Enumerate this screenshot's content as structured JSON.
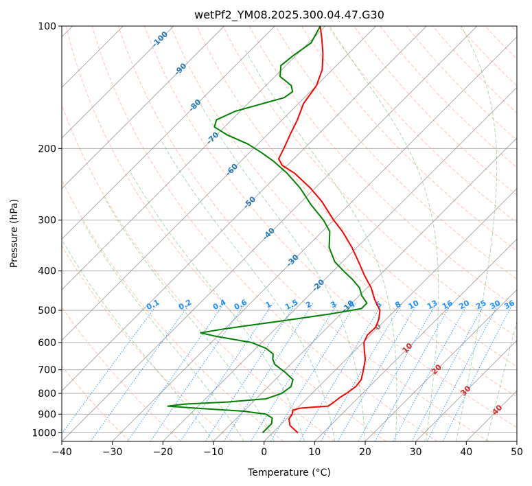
{
  "chart_data": {
    "type": "line",
    "subtype": "skew-t log-p diagram",
    "title": "wetPf2_YM08.2025.300.04.47.G30",
    "xlabel": "Temperature (°C)",
    "ylabel": "Pressure (hPa)",
    "xlim": [
      -40,
      50
    ],
    "ylim_hpa": [
      1050,
      100
    ],
    "x_ticks": [
      -40,
      -30,
      -20,
      -10,
      0,
      10,
      20,
      30,
      40,
      50
    ],
    "x_tick_labels": [
      "−40",
      "−30",
      "−20",
      "−10",
      "0",
      "10",
      "20",
      "30",
      "40",
      "50"
    ],
    "y_ticks": [
      100,
      200,
      300,
      400,
      500,
      600,
      700,
      800,
      900,
      1000
    ],
    "y_tick_labels": [
      "100",
      "200",
      "300",
      "400",
      "500",
      "600",
      "700",
      "800",
      "900",
      "1000"
    ],
    "colors": {
      "temperature": "#ff0000",
      "dewpoint": "#008000",
      "dry_adiabat": "#ff7f50",
      "moist_adiabat": "#2ca02c",
      "mixing_ratio": "#1e90ff",
      "isotherm": "#808080",
      "isotherm_label_upper": "#1f77b4",
      "isotherm_label_lower": "#d62728",
      "grid": "#b0b0b0"
    },
    "series": [
      {
        "name": "Temperature",
        "points": [
          {
            "p": 1000,
            "t": 5.0
          },
          {
            "p": 960,
            "t": 2.0
          },
          {
            "p": 925,
            "t": 0.5
          },
          {
            "p": 900,
            "t": 0.2
          },
          {
            "p": 880,
            "t": -0.5
          },
          {
            "p": 870,
            "t": 0.5
          },
          {
            "p": 865,
            "t": 3.0
          },
          {
            "p": 860,
            "t": 5.7
          },
          {
            "p": 845,
            "t": 6.0
          },
          {
            "p": 820,
            "t": 6.3
          },
          {
            "p": 800,
            "t": 6.8
          },
          {
            "p": 770,
            "t": 7.3
          },
          {
            "p": 740,
            "t": 7.0
          },
          {
            "p": 700,
            "t": 5.5
          },
          {
            "p": 660,
            "t": 3.8
          },
          {
            "p": 630,
            "t": 2.0
          },
          {
            "p": 600,
            "t": 0.2
          },
          {
            "p": 575,
            "t": -0.6
          },
          {
            "p": 550,
            "t": -0.5
          },
          {
            "p": 525,
            "t": -1.5
          },
          {
            "p": 500,
            "t": -3.0
          },
          {
            "p": 470,
            "t": -6.2
          },
          {
            "p": 440,
            "t": -9.2
          },
          {
            "p": 410,
            "t": -13.0
          },
          {
            "p": 380,
            "t": -16.8
          },
          {
            "p": 350,
            "t": -21.0
          },
          {
            "p": 320,
            "t": -26.0
          },
          {
            "p": 300,
            "t": -30.0
          },
          {
            "p": 270,
            "t": -36.0
          },
          {
            "p": 250,
            "t": -41.0
          },
          {
            "p": 230,
            "t": -47.0
          },
          {
            "p": 220,
            "t": -51.0
          },
          {
            "p": 212,
            "t": -53.0
          },
          {
            "p": 200,
            "t": -54.0
          },
          {
            "p": 185,
            "t": -55.5
          },
          {
            "p": 170,
            "t": -57.0
          },
          {
            "p": 155,
            "t": -59.0
          },
          {
            "p": 140,
            "t": -60.0
          },
          {
            "p": 128,
            "t": -62.0
          },
          {
            "p": 117,
            "t": -65.0
          },
          {
            "p": 108,
            "t": -68.0
          },
          {
            "p": 100,
            "t": -71.0
          }
        ]
      },
      {
        "name": "Dewpoint",
        "points": [
          {
            "p": 1000,
            "t": -2.0
          },
          {
            "p": 950,
            "t": -2.0
          },
          {
            "p": 920,
            "t": -3.0
          },
          {
            "p": 900,
            "t": -5.0
          },
          {
            "p": 885,
            "t": -10.0
          },
          {
            "p": 870,
            "t": -20.0
          },
          {
            "p": 860,
            "t": -26.0
          },
          {
            "p": 850,
            "t": -23.0
          },
          {
            "p": 840,
            "t": -15.0
          },
          {
            "p": 825,
            "t": -8.0
          },
          {
            "p": 800,
            "t": -6.0
          },
          {
            "p": 770,
            "t": -5.5
          },
          {
            "p": 740,
            "t": -6.5
          },
          {
            "p": 710,
            "t": -9.5
          },
          {
            "p": 680,
            "t": -13.0
          },
          {
            "p": 660,
            "t": -14.5
          },
          {
            "p": 640,
            "t": -15.5
          },
          {
            "p": 620,
            "t": -18.0
          },
          {
            "p": 600,
            "t": -22.0
          },
          {
            "p": 580,
            "t": -30.0
          },
          {
            "p": 568,
            "t": -34.0
          },
          {
            "p": 555,
            "t": -30.0
          },
          {
            "p": 530,
            "t": -20.0
          },
          {
            "p": 510,
            "t": -12.0
          },
          {
            "p": 495,
            "t": -7.0
          },
          {
            "p": 480,
            "t": -7.0
          },
          {
            "p": 460,
            "t": -9.5
          },
          {
            "p": 440,
            "t": -11.5
          },
          {
            "p": 420,
            "t": -14.5
          },
          {
            "p": 400,
            "t": -18.0
          },
          {
            "p": 380,
            "t": -21.5
          },
          {
            "p": 350,
            "t": -25.5
          },
          {
            "p": 320,
            "t": -28.5
          },
          {
            "p": 300,
            "t": -32.0
          },
          {
            "p": 275,
            "t": -37.5
          },
          {
            "p": 250,
            "t": -43.0
          },
          {
            "p": 230,
            "t": -48.5
          },
          {
            "p": 215,
            "t": -53.5
          },
          {
            "p": 205,
            "t": -57.5
          },
          {
            "p": 195,
            "t": -62.0
          },
          {
            "p": 185,
            "t": -68.0
          },
          {
            "p": 177,
            "t": -72.0
          },
          {
            "p": 170,
            "t": -73.0
          },
          {
            "p": 162,
            "t": -71.0
          },
          {
            "p": 155,
            "t": -67.0
          },
          {
            "p": 150,
            "t": -64.0
          },
          {
            "p": 145,
            "t": -63.5
          },
          {
            "p": 140,
            "t": -65.0
          },
          {
            "p": 133,
            "t": -69.0
          },
          {
            "p": 125,
            "t": -71.0
          },
          {
            "p": 118,
            "t": -70.5
          },
          {
            "p": 110,
            "t": -69.5
          },
          {
            "p": 100,
            "t": -71.0
          }
        ]
      }
    ],
    "isotherm_labels_upper": [
      {
        "t": -100,
        "p": 108,
        "text": "-100"
      },
      {
        "t": -90,
        "p": 128,
        "text": "-90"
      },
      {
        "t": -80,
        "p": 157,
        "text": "-80"
      },
      {
        "t": -70,
        "p": 189,
        "text": "-70"
      },
      {
        "t": -60,
        "p": 226,
        "text": "-60"
      },
      {
        "t": -50,
        "p": 272,
        "text": "-50"
      },
      {
        "t": -40,
        "p": 325,
        "text": "-40"
      },
      {
        "t": -30,
        "p": 378,
        "text": "-30"
      },
      {
        "t": -20,
        "p": 435,
        "text": "-20"
      },
      {
        "t": -10,
        "p": 490,
        "text": "-10"
      }
    ],
    "isotherm_labels_lower": [
      {
        "t": 0,
        "p": 550,
        "text": "0"
      },
      {
        "t": 10,
        "p": 620,
        "text": "10"
      },
      {
        "t": 20,
        "p": 700,
        "text": "20"
      },
      {
        "t": 30,
        "p": 790,
        "text": "30"
      },
      {
        "t": 40,
        "p": 880,
        "text": "40"
      }
    ],
    "mixing_ratio_labels": [
      "0.1",
      "0.2",
      "0.4",
      "0.6",
      "1",
      "1.5",
      "2",
      "3",
      "4",
      "6",
      "8",
      "10",
      "13",
      "16",
      "20",
      "25",
      "30",
      "36"
    ],
    "mixing_ratio_label_pressure": 500
  }
}
